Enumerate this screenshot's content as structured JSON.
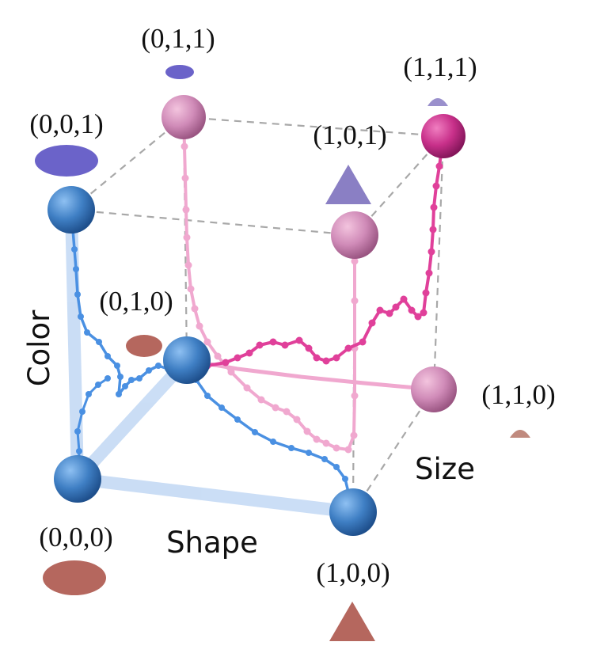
{
  "axes": {
    "color": "Color",
    "shape": "Shape",
    "size": "Size"
  },
  "vertices": [
    {
      "id": "v000",
      "label": "(0,0,0)",
      "color": "#4a86c8"
    },
    {
      "id": "v100",
      "label": "(1,0,0)",
      "color": "#4a86c8"
    },
    {
      "id": "v010",
      "label": "(0,1,0)",
      "color": "#4a86c8"
    },
    {
      "id": "v001",
      "label": "(0,0,1)",
      "color": "#4a86c8"
    },
    {
      "id": "v011",
      "label": "(0,1,1)",
      "color": "#d98fc0"
    },
    {
      "id": "v101",
      "label": "(1,0,1)",
      "color": "#d98fc0"
    },
    {
      "id": "v110",
      "label": "(1,1,0)",
      "color": "#d98fc0"
    },
    {
      "id": "v111",
      "label": "(1,1,1)",
      "color": "#c8308a"
    }
  ],
  "palette": {
    "blue_path": "#4a90e2",
    "light_pink_path": "#f0a8cf",
    "magenta_path": "#e0409a",
    "highlight_edges": "#c8dcf5",
    "cube_edges": "#a8a8a8",
    "shape_brown": "#b5675e",
    "shape_purple": "#6b63c9",
    "shape_lavender": "#8a7fc4"
  }
}
